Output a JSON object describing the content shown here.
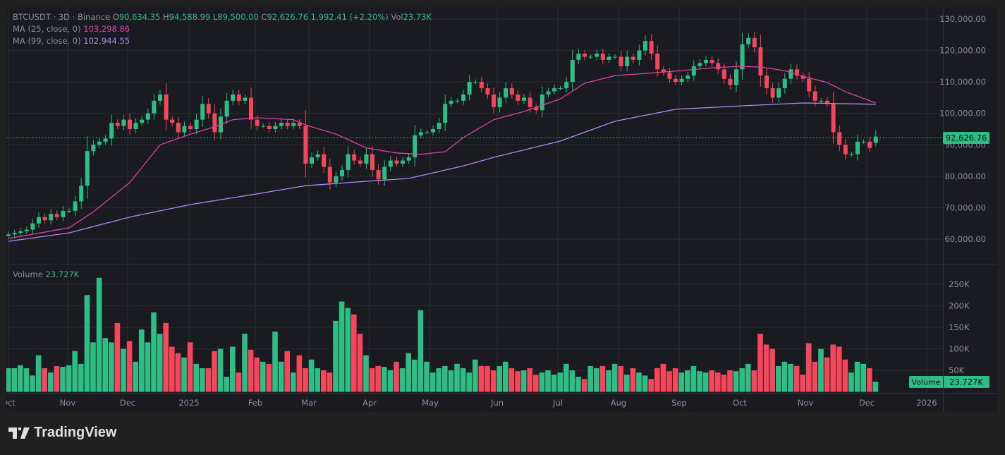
{
  "header": {
    "symbol": "BTCUSDT · 3D · Binance",
    "open_label": "O",
    "open": "90,634.35",
    "high_label": "H",
    "high": "94,588.99",
    "low_label": "L",
    "low": "89,500.00",
    "close_label": "C",
    "close": "92,626.76",
    "change": "1,992.41 (+2.20%)",
    "vol_label": "Vol",
    "vol": "23.73K"
  },
  "indicators": [
    {
      "label": "MA (25, close, 0)",
      "value": "103,298.86",
      "color": "#e040a8"
    },
    {
      "label": "MA (99, close, 0)",
      "value": "102,944.55",
      "color": "#b388f5"
    }
  ],
  "volume_pane": {
    "label": "Volume",
    "value": "23.727K"
  },
  "price_axis": [
    "130,000.00",
    "120,000.00",
    "110,000.00",
    "100,000.00",
    "90,000.00",
    "80,000.00",
    "70,000.00",
    "60,000.00"
  ],
  "volume_axis": [
    "250K",
    "200K",
    "150K",
    "100K",
    "50K"
  ],
  "last_price_tag": "92,626.76",
  "volume_tag": {
    "label": "Volume",
    "value": "23.727K"
  },
  "time_axis": [
    "Oct",
    "Nov",
    "Dec",
    "2025",
    "Feb",
    "Mar",
    "Apr",
    "May",
    "Jun",
    "Jul",
    "Aug",
    "Sep",
    "Oct",
    "Nov",
    "Dec",
    "2026"
  ],
  "branding": "TradingView",
  "colors": {
    "up": "#2dbd85",
    "down": "#f5475c",
    "ma25": "#e040a8",
    "ma99": "#b388f5",
    "background": "#1a1b20",
    "grid": "#2a2c33"
  },
  "chart_data": {
    "type": "candlestick",
    "symbol": "BTCUSDT",
    "interval": "3D",
    "price_unit": "thousand USDT",
    "volume_unit": "thousand BTC",
    "ylim": [
      55,
      132
    ],
    "last_candle": {
      "open": 90.634,
      "high": 94.589,
      "low": 89.5,
      "close": 92.627
    },
    "close": [
      61.5,
      62,
      62.5,
      63,
      65,
      67,
      66,
      68,
      67,
      69,
      69,
      72,
      77,
      88,
      90,
      91,
      92,
      97,
      96,
      98,
      95,
      97,
      98,
      100,
      104,
      106,
      98,
      97,
      94,
      96,
      95,
      98,
      103,
      100,
      94,
      99,
      104,
      106,
      104,
      105,
      98,
      96,
      96,
      95,
      96,
      97,
      96,
      97,
      96,
      84,
      86,
      87,
      83,
      78,
      80,
      82,
      87,
      85,
      84,
      87,
      82,
      79,
      83,
      85,
      84,
      85,
      86,
      93,
      94,
      94,
      95,
      97,
      103,
      104,
      104,
      106,
      110,
      110,
      108,
      106,
      102,
      105,
      108,
      106,
      104,
      105,
      102,
      101,
      106,
      107,
      108,
      108,
      110,
      117,
      119,
      118,
      118,
      119,
      117,
      118,
      118,
      115,
      118,
      117,
      120,
      123,
      119,
      114,
      113,
      111,
      110,
      111,
      112,
      115,
      116,
      117,
      116,
      114,
      111,
      109,
      114,
      122,
      124,
      121,
      112,
      108,
      105,
      108,
      111,
      114,
      112,
      111,
      107,
      104,
      104,
      103,
      94,
      90,
      87,
      87,
      91,
      91,
      89,
      92.627
    ],
    "volume": [
      55,
      55,
      62,
      55,
      38,
      85,
      55,
      45,
      60,
      58,
      62,
      95,
      65,
      225,
      115,
      265,
      125,
      115,
      160,
      100,
      118,
      70,
      145,
      115,
      185,
      135,
      160,
      105,
      90,
      80,
      115,
      65,
      55,
      55,
      95,
      100,
      35,
      105,
      45,
      135,
      98,
      80,
      70,
      65,
      140,
      70,
      95,
      45,
      85,
      55,
      75,
      55,
      50,
      45,
      165,
      210,
      195,
      180,
      135,
      85,
      55,
      60,
      58,
      50,
      70,
      55,
      90,
      75,
      190,
      70,
      45,
      55,
      60,
      50,
      65,
      55,
      45,
      75,
      60,
      60,
      50,
      60,
      70,
      55,
      48,
      50,
      55,
      40,
      45,
      50,
      40,
      45,
      65,
      50,
      35,
      30,
      60,
      55,
      60,
      50,
      65,
      60,
      40,
      55,
      45,
      38,
      30,
      55,
      65,
      48,
      55,
      45,
      50,
      60,
      48,
      45,
      50,
      45,
      40,
      50,
      48,
      55,
      65,
      50,
      135,
      110,
      100,
      60,
      70,
      65,
      60,
      40,
      113,
      70,
      100,
      80,
      110,
      105,
      75,
      45,
      70,
      65,
      55,
      23.727
    ],
    "ma25": [
      [
        0,
        60.2
      ],
      [
        10,
        63.6
      ],
      [
        14,
        68.7
      ],
      [
        20,
        78
      ],
      [
        25,
        90
      ],
      [
        30,
        93.4
      ],
      [
        34,
        95.7
      ],
      [
        37,
        98
      ],
      [
        41,
        98.6
      ],
      [
        47,
        98
      ],
      [
        49,
        96.3
      ],
      [
        54,
        93.4
      ],
      [
        59,
        89
      ],
      [
        64,
        87.4
      ],
      [
        68,
        87
      ],
      [
        72,
        87.8
      ],
      [
        75,
        92.3
      ],
      [
        80,
        98
      ],
      [
        85,
        100.6
      ],
      [
        91,
        104.6
      ],
      [
        95,
        109.6
      ],
      [
        100,
        112
      ],
      [
        105,
        112.7
      ],
      [
        111,
        113.6
      ],
      [
        116,
        114.5
      ],
      [
        121,
        115
      ],
      [
        124,
        114.7
      ],
      [
        128,
        113.6
      ],
      [
        131,
        111.8
      ],
      [
        135,
        109.8
      ],
      [
        138,
        106.9
      ],
      [
        143,
        103.3
      ]
    ],
    "ma99": [
      [
        0,
        59.3
      ],
      [
        10,
        62
      ],
      [
        20,
        67
      ],
      [
        30,
        71
      ],
      [
        41,
        74.4
      ],
      [
        49,
        77
      ],
      [
        59,
        78.4
      ],
      [
        66,
        79.3
      ],
      [
        75,
        83.3
      ],
      [
        80,
        86
      ],
      [
        91,
        91.2
      ],
      [
        100,
        97.5
      ],
      [
        110,
        101.3
      ],
      [
        121,
        102.4
      ],
      [
        131,
        103.3
      ],
      [
        143,
        102.9
      ]
    ]
  }
}
